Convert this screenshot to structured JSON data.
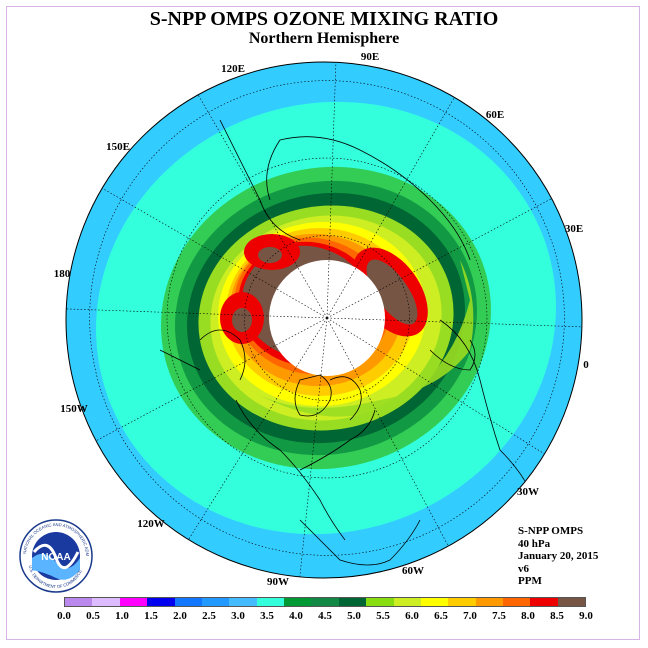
{
  "header": {
    "title": "S-NPP OMPS OZONE MIXING RATIO",
    "subtitle": "Northern Hemisphere"
  },
  "map": {
    "projection": "north polar stereographic",
    "ocean_color": "#33ccff",
    "land_line_color": "#000000",
    "longitude_labels": [
      "90E",
      "60E",
      "30E",
      "0",
      "30W",
      "60W",
      "90W",
      "120W",
      "150W",
      "180",
      "150E",
      "120E"
    ],
    "data_band_colors": [
      "#33ccff",
      "#33ffdd",
      "#33cc55",
      "#119944",
      "#006633",
      "#99dd22",
      "#ccee22",
      "#ffff00",
      "#ffcc00",
      "#ff9900",
      "#ff6600",
      "#ee0000",
      "#775544"
    ],
    "missing_data_color": "#ffffff"
  },
  "info": {
    "lines": [
      "S-NPP OMPS",
      "40 hPa",
      "January 20, 2015",
      "v6",
      "PPM"
    ]
  },
  "colorbar": {
    "colors": [
      "#bb88ee",
      "#ddbbff",
      "#ff00ff",
      "#0000ee",
      "#1177ff",
      "#2299ff",
      "#44bbff",
      "#33ffdd",
      "#009933",
      "#118844",
      "#006633",
      "#88dd11",
      "#ccee22",
      "#ffff00",
      "#ffcc00",
      "#ff9900",
      "#ff6600",
      "#ee0000",
      "#775544"
    ],
    "ticks": [
      "0.0",
      "0.5",
      "1.0",
      "1.5",
      "2.0",
      "2.5",
      "3.0",
      "3.5",
      "4.0",
      "4.5",
      "5.0",
      "5.5",
      "6.0",
      "6.5",
      "7.0",
      "7.5",
      "8.0",
      "8.5",
      "9.0"
    ]
  },
  "logo": {
    "text": "NOAA",
    "ring_text": "NATIONAL OCEANIC AND ATMOSPHERIC ADMINISTRATION",
    "bottom_text": "U.S. DEPARTMENT OF COMMERCE"
  }
}
